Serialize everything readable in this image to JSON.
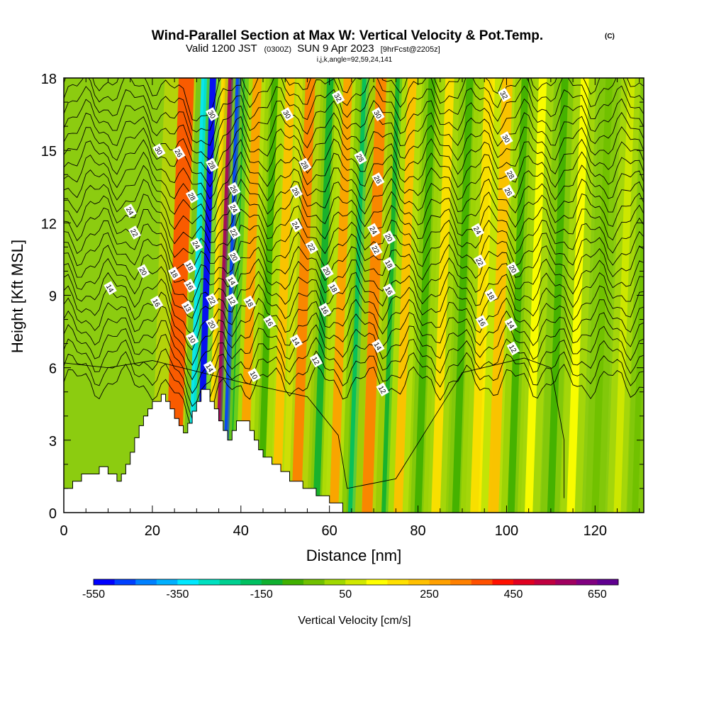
{
  "header": {
    "title": "Wind-Parallel Section at Max W: Vertical Velocity & Pot.Temp.",
    "title_units": "(C)",
    "valid_main": "Valid 1200 JST",
    "valid_z": "(0300Z)",
    "valid_date": "SUN 9 Apr 2023",
    "forecast": "[9hrFcst@2205z]",
    "indices": "i,j,k,angle=92,59,24,141"
  },
  "chart_data": {
    "type": "heatmap",
    "xlabel": "Distance [nm]",
    "ylabel": "Height [Kft MSL]",
    "xlim": [
      0,
      131
    ],
    "ylim": [
      0,
      18
    ],
    "x_ticks": [
      "0",
      "20",
      "40",
      "60",
      "80",
      "100",
      "120"
    ],
    "y_ticks": [
      "0",
      "3",
      "6",
      "9",
      "12",
      "15",
      "18"
    ],
    "colorbar": {
      "title": "Vertical Velocity [cm/s]",
      "tick_labels": [
        "-550",
        "-350",
        "-150",
        "50",
        "250",
        "450",
        "650"
      ],
      "colors": [
        "#0000ff",
        "#0040ff",
        "#0080ff",
        "#00b0ff",
        "#00e8ff",
        "#00e0c0",
        "#00d090",
        "#00c060",
        "#10b030",
        "#40b000",
        "#70c000",
        "#a0d800",
        "#d0e800",
        "#ffff00",
        "#ffe000",
        "#ffc000",
        "#ffa000",
        "#ff8000",
        "#ff5000",
        "#ff1000",
        "#e00020",
        "#c00040",
        "#a00060",
        "#800080",
        "#600090"
      ]
    },
    "bands": [
      {
        "x": 24.5,
        "w": 3.5,
        "v": 350
      },
      {
        "x": 28.5,
        "w": 1.3,
        "v": -350
      },
      {
        "x": 30.5,
        "w": 1.4,
        "v": -550
      },
      {
        "x": 32.8,
        "w": 1.0,
        "v": 150
      },
      {
        "x": 34.5,
        "w": 1.1,
        "v": 550
      },
      {
        "x": 36.2,
        "w": 1.1,
        "v": -500
      },
      {
        "x": 38.0,
        "w": 1.2,
        "v": -150
      },
      {
        "x": 40.5,
        "w": 2.0,
        "v": 250
      },
      {
        "x": 44.5,
        "w": 1.5,
        "v": -100
      },
      {
        "x": 48.0,
        "w": 2.0,
        "v": 200
      },
      {
        "x": 52.5,
        "w": 2.2,
        "v": 300
      },
      {
        "x": 57.0,
        "w": 1.5,
        "v": -150
      },
      {
        "x": 61.0,
        "w": 2.0,
        "v": 250
      },
      {
        "x": 65.0,
        "w": 1.6,
        "v": -200
      },
      {
        "x": 68.5,
        "w": 2.4,
        "v": 300
      },
      {
        "x": 72.5,
        "w": 1.5,
        "v": -150
      },
      {
        "x": 75.5,
        "w": 2.0,
        "v": 200
      },
      {
        "x": 80.0,
        "w": 1.6,
        "v": -100
      },
      {
        "x": 84.0,
        "w": 2.0,
        "v": 150
      },
      {
        "x": 88.5,
        "w": 1.6,
        "v": -100
      },
      {
        "x": 93.0,
        "w": 2.4,
        "v": 150
      },
      {
        "x": 97.0,
        "w": 2.4,
        "v": 200
      },
      {
        "x": 101.0,
        "w": 1.6,
        "v": -100
      },
      {
        "x": 105.0,
        "w": 1.8,
        "v": 100
      },
      {
        "x": 110.0,
        "w": 1.6,
        "v": -80
      },
      {
        "x": 114.5,
        "w": 1.8,
        "v": 80
      },
      {
        "x": 120.0,
        "w": 1.6,
        "v": -70
      },
      {
        "x": 125.0,
        "w": 1.6,
        "v": 60
      },
      {
        "x": 129.0,
        "w": 1.4,
        "v": -60
      }
    ],
    "terrain": [
      [
        0,
        1.0
      ],
      [
        2,
        1.0
      ],
      [
        2,
        1.3
      ],
      [
        4,
        1.3
      ],
      [
        4,
        1.6
      ],
      [
        8,
        1.6
      ],
      [
        8,
        1.9
      ],
      [
        10,
        1.9
      ],
      [
        10,
        1.6
      ],
      [
        12,
        1.6
      ],
      [
        12,
        1.3
      ],
      [
        13,
        1.3
      ],
      [
        13,
        1.6
      ],
      [
        14,
        1.6
      ],
      [
        14,
        2.0
      ],
      [
        15,
        2.0
      ],
      [
        15,
        2.5
      ],
      [
        16,
        2.5
      ],
      [
        16,
        3.1
      ],
      [
        17,
        3.1
      ],
      [
        17,
        3.6
      ],
      [
        18,
        3.6
      ],
      [
        18,
        4.0
      ],
      [
        19,
        4.0
      ],
      [
        19,
        4.3
      ],
      [
        20,
        4.3
      ],
      [
        20,
        4.6
      ],
      [
        22,
        4.6
      ],
      [
        22,
        4.9
      ],
      [
        23,
        4.9
      ],
      [
        23,
        4.6
      ],
      [
        24,
        4.6
      ],
      [
        24,
        4.3
      ],
      [
        25,
        4.3
      ],
      [
        25,
        3.9
      ],
      [
        26,
        3.9
      ],
      [
        26,
        3.6
      ],
      [
        27,
        3.6
      ],
      [
        27,
        3.3
      ],
      [
        28,
        3.3
      ],
      [
        28,
        3.7
      ],
      [
        29,
        3.7
      ],
      [
        29,
        4.2
      ],
      [
        30,
        4.2
      ],
      [
        30,
        4.6
      ],
      [
        31,
        4.6
      ],
      [
        31,
        5.1
      ],
      [
        33,
        5.1
      ],
      [
        33,
        4.6
      ],
      [
        34,
        4.6
      ],
      [
        34,
        4.3
      ],
      [
        35,
        4.3
      ],
      [
        35,
        3.8
      ],
      [
        36,
        3.8
      ],
      [
        36,
        3.4
      ],
      [
        37,
        3.4
      ],
      [
        37,
        3.0
      ],
      [
        38,
        3.0
      ],
      [
        38,
        3.4
      ],
      [
        39,
        3.4
      ],
      [
        39,
        3.8
      ],
      [
        42,
        3.8
      ],
      [
        42,
        3.4
      ],
      [
        43,
        3.4
      ],
      [
        43,
        3.0
      ],
      [
        44,
        3.0
      ],
      [
        44,
        2.6
      ],
      [
        45,
        2.6
      ],
      [
        45,
        2.3
      ],
      [
        47,
        2.3
      ],
      [
        47,
        2.0
      ],
      [
        49,
        2.0
      ],
      [
        49,
        1.7
      ],
      [
        51,
        1.7
      ],
      [
        51,
        1.3
      ],
      [
        54,
        1.3
      ],
      [
        54,
        1.0
      ],
      [
        57,
        1.0
      ],
      [
        57,
        0.7
      ],
      [
        60,
        0.7
      ],
      [
        60,
        0.4
      ],
      [
        63,
        0.4
      ],
      [
        63,
        0.0
      ]
    ],
    "theta_labels": [
      {
        "x": 10.5,
        "y": 9.3,
        "t": "14"
      },
      {
        "x": 15,
        "y": 12.5,
        "t": "24"
      },
      {
        "x": 16,
        "y": 11.6,
        "t": "22"
      },
      {
        "x": 18,
        "y": 10.0,
        "t": "20"
      },
      {
        "x": 21,
        "y": 8.7,
        "t": "16"
      },
      {
        "x": 21.5,
        "y": 15.0,
        "t": "30"
      },
      {
        "x": 26,
        "y": 14.9,
        "t": "26"
      },
      {
        "x": 25,
        "y": 9.9,
        "t": "18"
      },
      {
        "x": 29,
        "y": 13.1,
        "t": "28"
      },
      {
        "x": 30,
        "y": 11.1,
        "t": "24"
      },
      {
        "x": 28.5,
        "y": 10.2,
        "t": "18"
      },
      {
        "x": 28.5,
        "y": 9.4,
        "t": "16"
      },
      {
        "x": 28,
        "y": 8.5,
        "t": "13"
      },
      {
        "x": 29,
        "y": 7.2,
        "t": "10"
      },
      {
        "x": 33.5,
        "y": 16.5,
        "t": "30"
      },
      {
        "x": 33.5,
        "y": 14.4,
        "t": "28"
      },
      {
        "x": 33.5,
        "y": 8.8,
        "t": "22"
      },
      {
        "x": 33.5,
        "y": 7.8,
        "t": "20"
      },
      {
        "x": 33,
        "y": 6.0,
        "t": "14"
      },
      {
        "x": 38.5,
        "y": 13.4,
        "t": "26"
      },
      {
        "x": 38.5,
        "y": 12.6,
        "t": "24"
      },
      {
        "x": 38.5,
        "y": 11.6,
        "t": "22"
      },
      {
        "x": 38.5,
        "y": 10.6,
        "t": "20"
      },
      {
        "x": 38,
        "y": 9.6,
        "t": "14"
      },
      {
        "x": 38,
        "y": 8.8,
        "t": "12"
      },
      {
        "x": 42,
        "y": 8.7,
        "t": "18"
      },
      {
        "x": 43,
        "y": 5.7,
        "t": "10"
      },
      {
        "x": 46.5,
        "y": 7.9,
        "t": "16"
      },
      {
        "x": 50.5,
        "y": 16.5,
        "t": "30"
      },
      {
        "x": 54.5,
        "y": 14.4,
        "t": "28"
      },
      {
        "x": 52.5,
        "y": 13.3,
        "t": "26"
      },
      {
        "x": 52.5,
        "y": 11.9,
        "t": "24"
      },
      {
        "x": 56,
        "y": 11.0,
        "t": "22"
      },
      {
        "x": 52.5,
        "y": 7.1,
        "t": "14"
      },
      {
        "x": 57,
        "y": 6.3,
        "t": "12"
      },
      {
        "x": 59.5,
        "y": 10.0,
        "t": "20"
      },
      {
        "x": 61,
        "y": 9.3,
        "t": "18"
      },
      {
        "x": 59,
        "y": 8.4,
        "t": "16"
      },
      {
        "x": 62,
        "y": 17.2,
        "t": "32"
      },
      {
        "x": 67,
        "y": 14.7,
        "t": "28"
      },
      {
        "x": 71,
        "y": 13.8,
        "t": "26"
      },
      {
        "x": 70,
        "y": 11.7,
        "t": "24"
      },
      {
        "x": 70.5,
        "y": 10.9,
        "t": "22"
      },
      {
        "x": 73.5,
        "y": 11.4,
        "t": "20"
      },
      {
        "x": 73.5,
        "y": 10.3,
        "t": "18"
      },
      {
        "x": 73.5,
        "y": 9.2,
        "t": "16"
      },
      {
        "x": 71,
        "y": 16.5,
        "t": "30"
      },
      {
        "x": 71,
        "y": 6.9,
        "t": "14"
      },
      {
        "x": 72,
        "y": 5.1,
        "t": "12"
      },
      {
        "x": 93.5,
        "y": 11.7,
        "t": "24"
      },
      {
        "x": 94,
        "y": 10.4,
        "t": "22"
      },
      {
        "x": 96.5,
        "y": 9.0,
        "t": "18"
      },
      {
        "x": 94.5,
        "y": 7.9,
        "t": "16"
      },
      {
        "x": 100,
        "y": 15.5,
        "t": "30"
      },
      {
        "x": 101,
        "y": 14.0,
        "t": "28"
      },
      {
        "x": 100.5,
        "y": 13.3,
        "t": "26"
      },
      {
        "x": 101.5,
        "y": 10.1,
        "t": "20"
      },
      {
        "x": 101,
        "y": 7.8,
        "t": "14"
      },
      {
        "x": 101.5,
        "y": 6.8,
        "t": "12"
      },
      {
        "x": 99.5,
        "y": 17.3,
        "t": "32"
      }
    ]
  }
}
